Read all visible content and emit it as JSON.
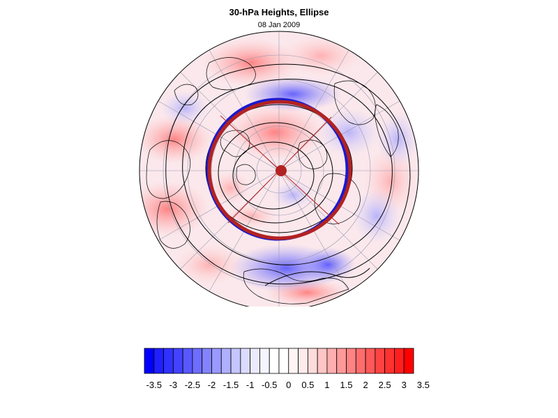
{
  "map": {
    "title": "30-hPa Heights, Ellipse",
    "date": "08 Jan 2009",
    "projection": "north polar stereographic",
    "field_description": "standardized 30-hPa geopotential height anomaly",
    "ellipse_color": "#b22222",
    "contour_color": "#000000"
  },
  "colorbar": {
    "labels": [
      "-3.5",
      "-3",
      "-2.5",
      "-2",
      "-1.5",
      "-1",
      "-0.5",
      "0",
      "0.5",
      "1",
      "1.5",
      "2",
      "2.5",
      "3",
      "3.5"
    ],
    "colors": [
      "#0000ff",
      "#1f1fff",
      "#3131ff",
      "#4343ff",
      "#5858ff",
      "#6d6dff",
      "#8383ff",
      "#9999ff",
      "#afafff",
      "#c5c5ff",
      "#dbdbff",
      "#ebebff",
      "#f5f5ff",
      "#ffffff",
      "#ffffff",
      "#fff5f5",
      "#ffebeb",
      "#ffdbdb",
      "#ffc5c5",
      "#ffafaf",
      "#ff9999",
      "#ff8383",
      "#ff6d6d",
      "#ff5858",
      "#ff4343",
      "#ff3131",
      "#ff1f1f",
      "#ff0000"
    ]
  }
}
